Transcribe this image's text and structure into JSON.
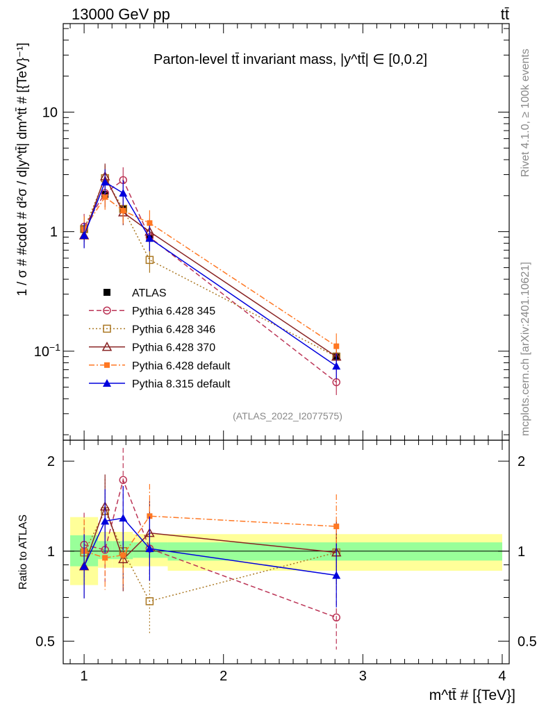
{
  "header": {
    "energy_label": "13000 GeV pp",
    "process_label": "tt̄"
  },
  "side_labels": {
    "rivet": "Rivet 4.1.0, ≥ 100k events",
    "source": "mcplots.cern.ch [arXiv:2401.10621]"
  },
  "chart_data": [
    {
      "type": "line",
      "panel": "main",
      "title": "Parton-level tt̄ invariant mass, |y^tt̄| ∈ [0,0.2]",
      "xlabel": "m^tt̄ # [{TeV}]",
      "ylabel": "1 / σ # #cdot # d²σ / d|y^tt̄| dm^tt̄ # [{TeV}⁻¹]",
      "yscale": "log",
      "xlim": [
        0.85,
        4.05
      ],
      "ylim": [
        0.018,
        55
      ],
      "x_ticks": [
        "1",
        "2",
        "3",
        "4"
      ],
      "y_ticks": [
        "10^-1",
        "1",
        "10"
      ],
      "reference_label": "(ATLAS_2022_I2077575)",
      "legend_position": "center-left",
      "series": [
        {
          "name": "ATLAS",
          "color": "#000000",
          "style": "data",
          "x": [
            1.0,
            1.15,
            1.28,
            1.47,
            2.81
          ],
          "y": [
            1.05,
            2.05,
            1.55,
            0.88,
            0.091
          ]
        },
        {
          "name": "Pythia 6.428 345",
          "color": "#bb3355",
          "style": "dashed",
          "marker": "open-circle",
          "x": [
            1.0,
            1.15,
            1.28,
            1.47,
            2.81
          ],
          "y": [
            1.1,
            2.1,
            2.7,
            0.9,
            0.055
          ]
        },
        {
          "name": "Pythia 6.428 346",
          "color": "#aa7722",
          "style": "dotted",
          "marker": "open-square",
          "x": [
            1.0,
            1.15,
            1.28,
            1.47,
            2.81
          ],
          "y": [
            1.05,
            2.8,
            1.55,
            0.58,
            0.09
          ]
        },
        {
          "name": "Pythia 6.428 370",
          "color": "#882222",
          "style": "solid",
          "marker": "open-triangle",
          "x": [
            1.0,
            1.15,
            1.28,
            1.47,
            2.81
          ],
          "y": [
            0.93,
            2.9,
            1.45,
            1.0,
            0.09
          ]
        },
        {
          "name": "Pythia 6.428 default",
          "color": "#ff7722",
          "style": "dashdot",
          "marker": "filled-square",
          "x": [
            1.0,
            1.15,
            1.28,
            1.47,
            2.81
          ],
          "y": [
            1.05,
            1.95,
            1.5,
            1.18,
            0.11
          ]
        },
        {
          "name": "Pythia 8.315 default",
          "color": "#0000dd",
          "style": "solid",
          "marker": "filled-triangle",
          "x": [
            1.0,
            1.15,
            1.28,
            1.47,
            2.81
          ],
          "y": [
            0.93,
            2.6,
            2.1,
            0.88,
            0.075
          ]
        }
      ]
    },
    {
      "type": "line",
      "panel": "ratio",
      "xlabel": "m^tt̄ # [{TeV}]",
      "ylabel": "Ratio to ATLAS",
      "xlim": [
        0.85,
        4.05
      ],
      "ylim": [
        0.42,
        2.35
      ],
      "x_ticks": [
        "1",
        "2",
        "3",
        "4"
      ],
      "y_ticks": [
        "0.5",
        "1",
        "2"
      ],
      "bands": [
        {
          "x0": 0.9,
          "x1": 1.1,
          "yellow": [
            0.77,
            1.3
          ],
          "green": [
            0.89,
            1.13
          ]
        },
        {
          "x0": 1.1,
          "x1": 1.2,
          "yellow": [
            0.88,
            1.16
          ],
          "green": [
            0.94,
            1.08
          ]
        },
        {
          "x0": 1.2,
          "x1": 1.35,
          "yellow": [
            0.88,
            1.16
          ],
          "green": [
            0.94,
            1.08
          ]
        },
        {
          "x0": 1.35,
          "x1": 1.6,
          "yellow": [
            0.89,
            1.14
          ],
          "green": [
            0.95,
            1.07
          ]
        },
        {
          "x0": 1.6,
          "x1": 4.0,
          "yellow": [
            0.86,
            1.14
          ],
          "green": [
            0.93,
            1.07
          ]
        }
      ],
      "series": [
        {
          "name": "Pythia 6.428 345",
          "color": "#bb3355",
          "x": [
            1.0,
            1.15,
            1.28,
            1.47,
            2.81
          ],
          "y": [
            1.05,
            1.01,
            1.73,
            1.02,
            0.6
          ]
        },
        {
          "name": "Pythia 6.428 346",
          "color": "#aa7722",
          "x": [
            1.0,
            1.15,
            1.28,
            1.47,
            2.81
          ],
          "y": [
            0.99,
            1.36,
            1.0,
            0.68,
            0.99
          ]
        },
        {
          "name": "Pythia 6.428 370",
          "color": "#882222",
          "x": [
            1.0,
            1.15,
            1.28,
            1.47,
            2.81
          ],
          "y": [
            0.89,
            1.41,
            0.94,
            1.15,
            0.99
          ]
        },
        {
          "name": "Pythia 6.428 default",
          "color": "#ff7722",
          "x": [
            1.0,
            1.15,
            1.28,
            1.47,
            2.81
          ],
          "y": [
            1.0,
            0.95,
            0.97,
            1.31,
            1.21
          ]
        },
        {
          "name": "Pythia 8.315 default",
          "color": "#0000dd",
          "x": [
            1.0,
            1.15,
            1.28,
            1.47,
            2.81
          ],
          "y": [
            0.89,
            1.26,
            1.29,
            1.02,
            0.83
          ]
        }
      ]
    }
  ]
}
